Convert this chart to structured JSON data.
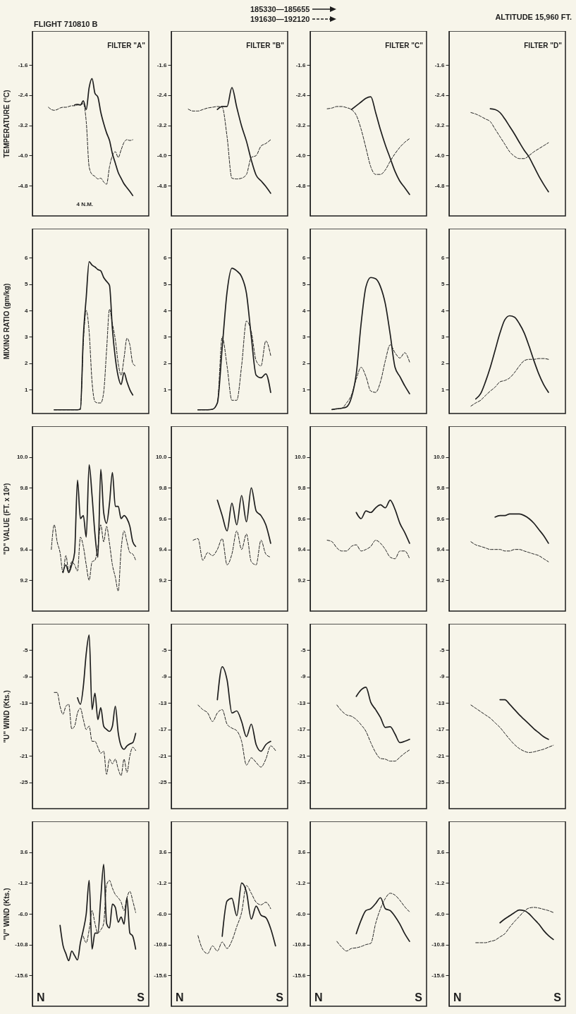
{
  "chart_data": [
    {
      "type": "line",
      "title": "FILTER \"A\"",
      "ylabel": "TEMPERATURE (°C)",
      "categories": [
        null,
        null,
        null,
        null,
        null,
        null,
        null,
        null,
        null,
        null,
        null,
        null,
        null,
        null,
        null,
        null,
        null,
        null,
        null,
        null,
        null,
        null,
        null,
        null,
        null,
        null,
        null,
        null,
        null,
        null,
        null,
        null,
        null,
        null,
        null,
        null,
        null,
        null,
        null,
        null
      ],
      "ylim": [
        -5.6,
        -0.7
      ],
      "yticks": [
        -4.8,
        {
          "value": -4,
          "label": "-4.0"
        },
        -3.2,
        -2.4,
        -1.6
      ],
      "tick_labels": "y",
      "annotations": [
        "FLIGHT 710810 B",
        "185330—185655",
        "191630—192120",
        "ALTITUDE 15,960 FT.",
        "4 N.M."
      ],
      "series": [
        {
          "color": "#1e1e1e",
          "line_style": "solid",
          "values": [
            null,
            null,
            null,
            null,
            null,
            null,
            null,
            null,
            null,
            null,
            null,
            null,
            null,
            null,
            -2.66,
            -2.64,
            -2.66,
            -2.55,
            -2.78,
            -2.2,
            -1.96,
            -2.35,
            -2.45,
            -2.85,
            -3.15,
            -3.4,
            -3.6,
            -3.95,
            -4.2,
            -4.45,
            -4.6,
            -4.75,
            -4.85,
            -4.95,
            -5.06,
            null,
            null,
            null,
            null,
            null
          ]
        },
        {
          "color": "#1e1e1e",
          "line_style": "dashed",
          "values": [
            null,
            null,
            null,
            null,
            null,
            -2.72,
            -2.78,
            -2.8,
            -2.78,
            -2.74,
            -2.72,
            -2.72,
            -2.7,
            -2.68,
            -2.68,
            -2.66,
            -2.66,
            -2.62,
            -3.1,
            -4.3,
            -4.5,
            -4.55,
            -4.62,
            -4.6,
            -4.7,
            -4.76,
            -4.3,
            -4.0,
            -3.9,
            -4.05,
            -3.85,
            -3.65,
            -3.58,
            -3.6,
            -3.58,
            null,
            null,
            null,
            null,
            null
          ]
        }
      ]
    },
    {
      "type": "line",
      "title": "FILTER \"B\"",
      "categories": [
        null,
        null,
        null,
        null,
        null,
        null,
        null,
        null,
        null,
        null,
        null,
        null,
        null,
        null,
        null,
        null,
        null,
        null,
        null,
        null,
        null,
        null,
        null,
        null
      ],
      "ylim": [
        -5.6,
        -0.7
      ],
      "yticks": [
        -4.8,
        {
          "value": -4,
          "label": "-4.0"
        },
        -3.2,
        -2.4,
        -1.6
      ],
      "tick_labels": "y",
      "series": [
        {
          "color": "#1e1e1e",
          "line_style": "solid",
          "values": [
            null,
            null,
            null,
            null,
            null,
            null,
            null,
            null,
            null,
            -2.78,
            -2.7,
            -2.7,
            -2.2,
            -2.72,
            -3.22,
            -3.62,
            -4.12,
            -4.52,
            -4.67,
            -4.82,
            -5.0,
            null,
            null,
            null
          ]
        },
        {
          "color": "#1e1e1e",
          "line_style": "dashed",
          "values": [
            null,
            null,
            null,
            -2.77,
            -2.82,
            -2.82,
            -2.78,
            -2.74,
            -2.72,
            -2.7,
            -2.72,
            -3.5,
            -4.6,
            -4.62,
            -4.6,
            -4.5,
            -4.05,
            -4.0,
            -3.75,
            -3.68,
            -3.58,
            null,
            null,
            null
          ]
        }
      ]
    },
    {
      "type": "line",
      "title": "FILTER \"C\"",
      "categories": [
        null,
        null,
        null,
        null,
        null,
        null,
        null,
        null,
        null,
        null,
        null,
        null,
        null,
        null,
        null,
        null,
        null,
        null,
        null,
        null,
        null,
        null,
        null,
        null
      ],
      "ylim": [
        -5.6,
        -0.7
      ],
      "yticks": [
        -4.8,
        {
          "value": -4,
          "label": "-4.0"
        },
        -3.2,
        -2.4,
        -1.6
      ],
      "tick_labels": "y",
      "series": [
        {
          "color": "#1e1e1e",
          "line_style": "solid",
          "values": [
            null,
            null,
            null,
            null,
            null,
            null,
            null,
            null,
            -2.78,
            -2.68,
            -2.58,
            -2.48,
            -2.44,
            -2.86,
            -3.32,
            -3.72,
            -4.07,
            -4.42,
            -4.68,
            -4.85,
            -5.03,
            null,
            null,
            null
          ]
        },
        {
          "color": "#1e1e1e",
          "line_style": "dashed",
          "values": [
            null,
            null,
            null,
            -2.76,
            -2.74,
            -2.7,
            -2.7,
            -2.73,
            -2.78,
            -2.93,
            -3.3,
            -3.8,
            -4.3,
            -4.5,
            -4.5,
            -4.38,
            -4.15,
            -3.95,
            -3.78,
            -3.65,
            -3.55,
            null,
            null,
            null
          ]
        }
      ]
    },
    {
      "type": "line",
      "title": "FILTER \"D\"",
      "categories": [
        null,
        null,
        null,
        null,
        null,
        null,
        null,
        null,
        null,
        null,
        null,
        null,
        null,
        null,
        null,
        null,
        null,
        null,
        null,
        null,
        null,
        null,
        null,
        null
      ],
      "ylim": [
        -5.6,
        -0.7
      ],
      "yticks": [
        -4.8,
        {
          "value": -4,
          "label": "-4.0"
        },
        -3.2,
        -2.4,
        -1.6
      ],
      "tick_labels": "y",
      "series": [
        {
          "color": "#1e1e1e",
          "line_style": "solid",
          "values": [
            null,
            null,
            null,
            null,
            null,
            null,
            null,
            null,
            -2.76,
            -2.78,
            -2.86,
            -3.03,
            -3.23,
            -3.43,
            -3.65,
            -3.86,
            -4.04,
            -4.29,
            -4.54,
            -4.76,
            -4.96,
            null,
            null,
            null
          ]
        },
        {
          "color": "#1e1e1e",
          "line_style": "dashed",
          "values": [
            null,
            null,
            null,
            null,
            -2.86,
            -2.9,
            -2.96,
            -3.03,
            -3.1,
            -3.3,
            -3.5,
            -3.7,
            -3.9,
            -4.02,
            -4.08,
            -4.08,
            -4.0,
            -3.9,
            -3.82,
            -3.74,
            -3.66,
            null,
            null,
            null
          ]
        }
      ]
    },
    {
      "type": "line",
      "ylabel": "MIXING RATIO (gm/kg)",
      "categories": [
        null,
        null,
        null,
        null,
        null,
        null,
        null,
        null,
        null,
        null,
        null,
        null,
        null,
        null,
        null,
        null,
        null,
        null,
        null,
        null,
        null,
        null,
        null,
        null,
        null,
        null,
        null,
        null,
        null,
        null,
        null,
        null,
        null,
        null,
        null,
        null,
        null,
        null,
        null,
        null
      ],
      "ylim": [
        0.1,
        7.1
      ],
      "yticks": [
        1,
        2,
        3,
        4,
        5,
        6
      ],
      "tick_labels": "y",
      "series": [
        {
          "color": "#1e1e1e",
          "line_style": "solid",
          "values": [
            null,
            null,
            null,
            null,
            null,
            null,
            null,
            0.24,
            0.24,
            0.24,
            0.24,
            0.24,
            0.24,
            0.24,
            0.24,
            0.24,
            0.26,
            3.0,
            4.5,
            5.85,
            5.72,
            5.65,
            5.55,
            5.5,
            5.25,
            5.1,
            4.95,
            3.3,
            2.2,
            1.5,
            1.2,
            1.65,
            1.3,
            1.0,
            0.8,
            null,
            null,
            null,
            null,
            null
          ]
        },
        {
          "color": "#1e1e1e",
          "line_style": "dashed",
          "values": [
            null,
            null,
            null,
            null,
            null,
            null,
            null,
            0.24,
            0.24,
            0.24,
            0.24,
            0.24,
            0.24,
            0.24,
            0.24,
            0.24,
            0.3,
            2.8,
            4.0,
            3.2,
            1.3,
            0.55,
            0.5,
            0.5,
            0.9,
            2.5,
            4.05,
            3.5,
            2.9,
            2.0,
            1.55,
            2.2,
            2.95,
            2.7,
            2.0,
            1.9,
            null,
            null,
            null,
            null
          ]
        }
      ]
    },
    {
      "type": "line",
      "categories": [
        null,
        null,
        null,
        null,
        null,
        null,
        null,
        null,
        null,
        null,
        null,
        null,
        null,
        null,
        null,
        null,
        null,
        null,
        null,
        null,
        null,
        null,
        null,
        null
      ],
      "ylim": [
        0.1,
        7.1
      ],
      "yticks": [
        1,
        2,
        3,
        4,
        5,
        6
      ],
      "tick_labels": "y",
      "series": [
        {
          "color": "#1e1e1e",
          "line_style": "solid",
          "values": [
            null,
            null,
            null,
            null,
            null,
            0.24,
            0.24,
            0.24,
            0.26,
            0.5,
            2.6,
            4.7,
            5.6,
            5.5,
            5.28,
            4.65,
            3.0,
            1.55,
            1.45,
            1.6,
            0.9,
            null,
            null,
            null
          ]
        },
        {
          "color": "#1e1e1e",
          "line_style": "dashed",
          "values": [
            null,
            null,
            null,
            null,
            null,
            0.24,
            0.24,
            0.24,
            0.26,
            0.5,
            3.0,
            1.9,
            0.6,
            0.6,
            1.9,
            3.6,
            3.2,
            2.1,
            1.9,
            2.85,
            2.3,
            null,
            null,
            null
          ]
        }
      ]
    },
    {
      "type": "line",
      "categories": [
        null,
        null,
        null,
        null,
        null,
        null,
        null,
        null,
        null,
        null,
        null,
        null,
        null,
        null,
        null,
        null,
        null,
        null,
        null,
        null,
        null,
        null,
        null,
        null
      ],
      "ylim": [
        0.1,
        7.1
      ],
      "yticks": [
        1,
        2,
        3,
        4,
        5,
        6
      ],
      "tick_labels": "y",
      "series": [
        {
          "color": "#1e1e1e",
          "line_style": "solid",
          "values": [
            null,
            null,
            null,
            null,
            0.25,
            0.28,
            0.3,
            0.35,
            0.7,
            1.6,
            3.5,
            4.9,
            5.25,
            5.2,
            4.9,
            4.25,
            3.1,
            1.85,
            1.5,
            1.15,
            0.85,
            null,
            null,
            null
          ]
        },
        {
          "color": "#1e1e1e",
          "line_style": "dashed",
          "values": [
            null,
            null,
            null,
            null,
            0.25,
            0.27,
            0.3,
            0.5,
            0.8,
            1.4,
            1.85,
            1.5,
            0.95,
            0.9,
            1.3,
            2.1,
            2.7,
            2.4,
            2.2,
            2.4,
            2.05,
            null,
            null,
            null
          ]
        }
      ]
    },
    {
      "type": "line",
      "categories": [
        null,
        null,
        null,
        null,
        null,
        null,
        null,
        null,
        null,
        null,
        null,
        null,
        null,
        null,
        null,
        null,
        null,
        null,
        null,
        null,
        null,
        null,
        null,
        null
      ],
      "ylim": [
        0.1,
        7.1
      ],
      "yticks": [
        1,
        2,
        3,
        4,
        5,
        6
      ],
      "tick_labels": "y",
      "series": [
        {
          "color": "#1e1e1e",
          "line_style": "solid",
          "values": [
            null,
            null,
            null,
            null,
            null,
            0.65,
            0.85,
            1.3,
            1.85,
            2.5,
            3.15,
            3.65,
            3.8,
            3.75,
            3.5,
            3.15,
            2.65,
            2.1,
            1.6,
            1.2,
            0.9,
            null,
            null,
            null
          ]
        },
        {
          "color": "#1e1e1e",
          "line_style": "dashed",
          "values": [
            null,
            null,
            null,
            null,
            0.38,
            0.5,
            0.6,
            0.78,
            0.95,
            1.1,
            1.3,
            1.35,
            1.45,
            1.65,
            1.9,
            2.1,
            2.15,
            2.15,
            2.18,
            2.18,
            2.15,
            null,
            null,
            null
          ]
        }
      ]
    },
    {
      "type": "line",
      "ylabel": "\"D\" VALUE (FT. x 10²)",
      "categories": [
        null,
        null,
        null,
        null,
        null,
        null,
        null,
        null,
        null,
        null,
        null,
        null,
        null,
        null,
        null,
        null,
        null,
        null,
        null,
        null,
        null,
        null,
        null,
        null,
        null,
        null,
        null,
        null,
        null,
        null,
        null,
        null,
        null,
        null,
        null,
        null,
        null,
        null,
        null,
        null
      ],
      "ylim": [
        9.0,
        10.2
      ],
      "yticks": [
        9.2,
        9.4,
        9.6,
        9.8,
        {
          "value": 10,
          "label": "10.0"
        }
      ],
      "tick_labels": "y",
      "series": [
        {
          "color": "#1e1e1e",
          "line_style": "solid",
          "values": [
            null,
            null,
            null,
            null,
            null,
            null,
            null,
            null,
            null,
            null,
            9.25,
            9.3,
            9.25,
            9.3,
            9.38,
            9.85,
            9.6,
            9.62,
            9.48,
            9.95,
            9.75,
            9.5,
            9.35,
            9.92,
            9.64,
            9.57,
            9.7,
            9.9,
            9.68,
            9.68,
            9.6,
            9.62,
            9.6,
            9.55,
            9.45,
            9.42,
            null,
            null,
            null,
            null
          ]
        },
        {
          "color": "#1e1e1e",
          "line_style": "dashed",
          "values": [
            null,
            null,
            null,
            null,
            null,
            null,
            9.4,
            9.56,
            9.45,
            9.38,
            9.25,
            9.36,
            9.26,
            9.32,
            9.3,
            9.26,
            9.48,
            9.42,
            9.3,
            9.2,
            9.32,
            9.33,
            9.42,
            9.56,
            9.45,
            9.55,
            9.44,
            9.3,
            9.22,
            9.13,
            9.4,
            9.52,
            9.45,
            9.38,
            9.37,
            9.33,
            null,
            null,
            null,
            null
          ]
        }
      ]
    },
    {
      "type": "line",
      "categories": [
        null,
        null,
        null,
        null,
        null,
        null,
        null,
        null,
        null,
        null,
        null,
        null,
        null,
        null,
        null,
        null,
        null,
        null,
        null,
        null,
        null,
        null,
        null,
        null
      ],
      "ylim": [
        9.0,
        10.2
      ],
      "yticks": [
        9.2,
        9.4,
        9.6,
        9.8,
        {
          "value": 10,
          "label": "10.0"
        }
      ],
      "tick_labels": "y",
      "series": [
        {
          "color": "#1e1e1e",
          "line_style": "solid",
          "values": [
            null,
            null,
            null,
            null,
            null,
            null,
            null,
            null,
            null,
            9.72,
            9.62,
            9.52,
            9.7,
            9.56,
            9.75,
            9.58,
            9.8,
            9.65,
            9.62,
            9.56,
            9.44,
            null,
            null,
            null
          ]
        },
        {
          "color": "#1e1e1e",
          "line_style": "dashed",
          "values": [
            null,
            null,
            null,
            null,
            9.46,
            9.47,
            9.33,
            9.38,
            9.36,
            9.4,
            9.47,
            9.3,
            9.37,
            9.52,
            9.4,
            9.5,
            9.32,
            9.3,
            9.46,
            9.37,
            9.35,
            null,
            null,
            null
          ]
        }
      ]
    },
    {
      "type": "line",
      "categories": [
        null,
        null,
        null,
        null,
        null,
        null,
        null,
        null,
        null,
        null,
        null,
        null,
        null,
        null,
        null,
        null,
        null,
        null,
        null,
        null,
        null,
        null,
        null,
        null
      ],
      "ylim": [
        9.0,
        10.2
      ],
      "yticks": [
        9.2,
        9.4,
        9.6,
        9.8,
        {
          "value": 10,
          "label": "10.0"
        }
      ],
      "tick_labels": "y",
      "series": [
        {
          "color": "#1e1e1e",
          "line_style": "solid",
          "values": [
            null,
            null,
            null,
            null,
            null,
            null,
            null,
            null,
            null,
            9.64,
            9.6,
            9.65,
            9.64,
            9.67,
            9.69,
            9.67,
            9.72,
            9.66,
            9.57,
            9.51,
            9.44,
            null,
            null,
            null
          ]
        },
        {
          "color": "#1e1e1e",
          "line_style": "dashed",
          "values": [
            null,
            null,
            null,
            9.46,
            9.45,
            9.41,
            9.39,
            9.39,
            9.42,
            9.43,
            9.39,
            9.4,
            9.42,
            9.46,
            9.44,
            9.4,
            9.35,
            9.34,
            9.39,
            9.39,
            9.34,
            null,
            null,
            null
          ]
        }
      ]
    },
    {
      "type": "line",
      "categories": [
        null,
        null,
        null,
        null,
        null,
        null,
        null,
        null,
        null,
        null,
        null,
        null,
        null,
        null,
        null,
        null,
        null,
        null,
        null,
        null,
        null,
        null,
        null,
        null
      ],
      "ylim": [
        9.0,
        10.2
      ],
      "yticks": [
        9.2,
        9.4,
        9.6,
        9.8,
        {
          "value": 10,
          "label": "10.0"
        }
      ],
      "tick_labels": "y",
      "series": [
        {
          "color": "#1e1e1e",
          "line_style": "solid",
          "values": [
            null,
            null,
            null,
            null,
            null,
            null,
            null,
            null,
            null,
            9.61,
            9.62,
            9.62,
            9.63,
            9.63,
            9.63,
            9.62,
            9.6,
            9.57,
            9.53,
            9.49,
            9.44,
            null,
            null,
            null
          ]
        },
        {
          "color": "#1e1e1e",
          "line_style": "dashed",
          "values": [
            null,
            null,
            null,
            null,
            9.45,
            9.43,
            9.42,
            9.41,
            9.4,
            9.4,
            9.4,
            9.39,
            9.39,
            9.4,
            9.4,
            9.39,
            9.38,
            9.37,
            9.36,
            9.34,
            9.32,
            null,
            null,
            null
          ]
        }
      ]
    },
    {
      "type": "line",
      "ylabel": "\"U\" WIND (Kts.)",
      "categories": [
        null,
        null,
        null,
        null,
        null,
        null,
        null,
        null,
        null,
        null,
        null,
        null,
        null,
        null,
        null,
        null,
        null,
        null,
        null,
        null,
        null,
        null,
        null,
        null,
        null,
        null,
        null,
        null,
        null,
        null,
        null,
        null,
        null,
        null,
        null,
        null,
        null,
        null,
        null,
        null
      ],
      "ylim": [
        -29,
        -1
      ],
      "yticks": [
        -25,
        -21,
        -17,
        -13,
        -9,
        -5
      ],
      "tick_labels": "y",
      "series": [
        {
          "color": "#1e1e1e",
          "line_style": "solid",
          "values": [
            null,
            null,
            null,
            null,
            null,
            null,
            null,
            null,
            null,
            null,
            null,
            null,
            null,
            null,
            null,
            -12.2,
            -13.2,
            -10.5,
            -5.5,
            -2.7,
            -14,
            -11.5,
            -15.5,
            -13.7,
            -16.5,
            -17,
            -17.3,
            -16.5,
            -13.5,
            -17.5,
            -19.5,
            -20,
            -19.5,
            -19.2,
            -19,
            -17.6,
            null,
            null,
            null,
            null
          ]
        },
        {
          "color": "#1e1e1e",
          "line_style": "dashed",
          "values": [
            null,
            null,
            null,
            null,
            null,
            null,
            null,
            -11.4,
            -11.4,
            -13.5,
            -14.7,
            -13.5,
            -13.2,
            -16.9,
            -16.5,
            -14.5,
            -13.8,
            -15.5,
            -17,
            -16.5,
            -18.8,
            -18.8,
            -19.7,
            -20.6,
            -20.3,
            -23.8,
            -21.5,
            -22.2,
            -21.5,
            -23,
            -24,
            -21.5,
            -23.5,
            -21,
            -19.7,
            -20.2,
            null,
            null,
            null,
            null
          ]
        }
      ]
    },
    {
      "type": "line",
      "categories": [
        null,
        null,
        null,
        null,
        null,
        null,
        null,
        null,
        null,
        null,
        null,
        null,
        null,
        null,
        null,
        null,
        null,
        null,
        null,
        null,
        null,
        null,
        null,
        null
      ],
      "ylim": [
        -29,
        -1
      ],
      "yticks": [
        -25,
        -21,
        -17,
        -13,
        -9,
        -5
      ],
      "tick_labels": "y",
      "series": [
        {
          "color": "#1e1e1e",
          "line_style": "solid",
          "values": [
            null,
            null,
            null,
            null,
            null,
            null,
            null,
            null,
            null,
            -12.5,
            -7.5,
            -9.5,
            -14.5,
            -14.2,
            -15.8,
            -18.1,
            -16.2,
            -19.3,
            -20.3,
            -19.3,
            -18.8,
            null,
            null,
            null
          ]
        },
        {
          "color": "#1e1e1e",
          "line_style": "dashed",
          "values": [
            null,
            null,
            null,
            null,
            null,
            -13.3,
            -14,
            -14.5,
            -15.8,
            -14.5,
            -14,
            -16.2,
            -16.8,
            -17.2,
            -18.8,
            -22.4,
            -21.3,
            -22,
            -22.7,
            -21.5,
            -19.5,
            -20.2,
            null,
            null
          ]
        }
      ]
    },
    {
      "type": "line",
      "categories": [
        null,
        null,
        null,
        null,
        null,
        null,
        null,
        null,
        null,
        null,
        null,
        null,
        null,
        null,
        null,
        null,
        null,
        null,
        null,
        null,
        null,
        null,
        null,
        null
      ],
      "ylim": [
        -29,
        -1
      ],
      "yticks": [
        -25,
        -21,
        -17,
        -13,
        -9,
        -5
      ],
      "tick_labels": "y",
      "series": [
        {
          "color": "#1e1e1e",
          "line_style": "solid",
          "values": [
            null,
            null,
            null,
            null,
            null,
            null,
            null,
            null,
            null,
            -12.0,
            -11.0,
            -10.6,
            -12.9,
            -14.0,
            -15.2,
            -16.7,
            -16.6,
            -17.7,
            -19.0,
            -18.8,
            -18.5,
            null,
            null,
            null
          ]
        },
        {
          "color": "#1e1e1e",
          "line_style": "dashed",
          "values": [
            null,
            null,
            null,
            null,
            null,
            -13.3,
            -14.2,
            -14.8,
            -15.0,
            -15.5,
            -16.3,
            -17.3,
            -19.0,
            -20.5,
            -21.4,
            -21.5,
            -21.8,
            -21.8,
            -21.2,
            -20.6,
            -20.1,
            null,
            null,
            null
          ]
        }
      ]
    },
    {
      "type": "line",
      "categories": [
        null,
        null,
        null,
        null,
        null,
        null,
        null,
        null,
        null,
        null,
        null,
        null,
        null,
        null,
        null,
        null,
        null,
        null,
        null,
        null,
        null,
        null,
        null,
        null
      ],
      "ylim": [
        -29,
        -1
      ],
      "yticks": [
        -25,
        -21,
        -17,
        -13,
        -9,
        -5
      ],
      "tick_labels": "y",
      "series": [
        {
          "color": "#1e1e1e",
          "line_style": "solid",
          "values": [
            null,
            null,
            null,
            null,
            null,
            null,
            null,
            null,
            null,
            null,
            -12.5,
            -12.5,
            -13.2,
            -14,
            -14.8,
            -15.5,
            -16.2,
            -16.9,
            -17.5,
            -18.1,
            -18.5,
            null,
            null,
            null
          ]
        },
        {
          "color": "#1e1e1e",
          "line_style": "dashed",
          "values": [
            null,
            null,
            null,
            null,
            -13.3,
            -13.8,
            -14.3,
            -14.8,
            -15.3,
            -16,
            -16.7,
            -17.6,
            -18.5,
            -19.3,
            -19.9,
            -20.3,
            -20.5,
            -20.4,
            -20.2,
            -20,
            -19.7,
            -19.4,
            null,
            null
          ]
        }
      ]
    },
    {
      "type": "line",
      "ylabel": "\"V\" WIND (Kts.)",
      "categories": [
        null,
        null,
        null,
        null,
        null,
        null,
        null,
        null,
        null,
        null,
        null,
        null,
        null,
        null,
        null,
        null,
        null,
        null,
        null,
        null,
        null,
        null,
        null,
        null,
        null,
        null,
        null,
        null,
        null,
        null,
        null,
        null,
        null,
        null,
        null,
        null,
        null,
        null,
        null,
        null
      ],
      "ylim": [
        -20.4,
        8.4
      ],
      "yticks": [
        -15.6,
        -10.8,
        {
          "value": -6,
          "label": "-6.0"
        },
        -1.2,
        3.6
      ],
      "tick_labels": "y",
      "annotations": [
        "N",
        "S"
      ],
      "series": [
        {
          "color": "#1e1e1e",
          "line_style": "solid",
          "values": [
            null,
            null,
            null,
            null,
            null,
            null,
            null,
            null,
            null,
            -7.8,
            -10.9,
            -12.2,
            -13.3,
            -11.8,
            -12.5,
            -13.2,
            -10.5,
            -8.5,
            -6,
            -0.8,
            -11.5,
            -9,
            -9,
            -3.5,
            1.7,
            -7.5,
            -8.2,
            -4.5,
            -5,
            -7.3,
            -6.5,
            -7.6,
            -3.5,
            -9,
            -9.5,
            -11.5,
            null,
            null,
            null,
            null
          ]
        },
        {
          "color": "#1e1e1e",
          "line_style": "dashed",
          "values": [
            null,
            null,
            null,
            null,
            null,
            null,
            null,
            null,
            null,
            null,
            null,
            null,
            null,
            null,
            null,
            null,
            null,
            -9.5,
            -10.5,
            -8.5,
            -5.5,
            -7.5,
            -9,
            -8.5,
            -7.5,
            -1.5,
            -0.8,
            -2,
            -3,
            -3.5,
            -4.2,
            -5.5,
            -3.5,
            -2.5,
            -4,
            -5.8,
            null,
            null,
            null,
            null
          ]
        }
      ]
    },
    {
      "type": "line",
      "categories": [
        null,
        null,
        null,
        null,
        null,
        null,
        null,
        null,
        null,
        null,
        null,
        null,
        null,
        null,
        null,
        null,
        null,
        null,
        null,
        null,
        null,
        null,
        null,
        null
      ],
      "ylim": [
        -20.4,
        8.4
      ],
      "yticks": [
        -15.6,
        -10.8,
        {
          "value": -6,
          "label": "-6.0"
        },
        -1.2,
        3.6
      ],
      "tick_labels": "y",
      "annotations": [
        "N",
        "S"
      ],
      "series": [
        {
          "color": "#1e1e1e",
          "line_style": "solid",
          "values": [
            null,
            null,
            null,
            null,
            null,
            null,
            null,
            null,
            null,
            null,
            -9.5,
            -4.0,
            -3.6,
            -6.3,
            -1.2,
            -2.6,
            -6.8,
            -4.8,
            -6.2,
            -6.6,
            -8.3,
            -11.0,
            null,
            null
          ]
        },
        {
          "color": "#1e1e1e",
          "line_style": "dashed",
          "values": [
            null,
            null,
            null,
            null,
            null,
            -9.4,
            -11.6,
            -12.2,
            -11.0,
            -11.8,
            -10.4,
            -11.4,
            -10.2,
            -8.0,
            -5.8,
            -1.6,
            -2.8,
            -4.2,
            -4.6,
            -4.2,
            -5.2,
            null,
            null,
            null
          ]
        }
      ]
    },
    {
      "type": "line",
      "categories": [
        null,
        null,
        null,
        null,
        null,
        null,
        null,
        null,
        null,
        null,
        null,
        null,
        null,
        null,
        null,
        null,
        null,
        null,
        null,
        null,
        null,
        null,
        null,
        null
      ],
      "ylim": [
        -20.4,
        8.4
      ],
      "yticks": [
        -15.6,
        -10.8,
        {
          "value": -6,
          "label": "-6.0"
        },
        -1.2,
        3.6
      ],
      "tick_labels": "y",
      "annotations": [
        "N",
        "S"
      ],
      "series": [
        {
          "color": "#1e1e1e",
          "line_style": "solid",
          "values": [
            null,
            null,
            null,
            null,
            null,
            null,
            null,
            null,
            null,
            -9.1,
            -7.0,
            -5.5,
            -5.2,
            -4.4,
            -3.5,
            -5.2,
            -5.5,
            -6.4,
            -7.6,
            -9.1,
            -10.3,
            null,
            null,
            null
          ]
        },
        {
          "color": "#1e1e1e",
          "line_style": "dashed",
          "values": [
            null,
            null,
            null,
            null,
            null,
            -10.3,
            -11.2,
            -11.8,
            -11.4,
            -11.3,
            -11.1,
            -10.8,
            -10.6,
            -7.5,
            -5.2,
            -3.6,
            -2.8,
            -3.1,
            -3.9,
            -4.9,
            -5.7,
            null,
            null,
            null
          ]
        }
      ]
    },
    {
      "type": "line",
      "categories": [
        null,
        null,
        null,
        null,
        null,
        null,
        null,
        null,
        null,
        null,
        null,
        null,
        null,
        null,
        null,
        null,
        null,
        null,
        null,
        null,
        null,
        null,
        null,
        null
      ],
      "ylim": [
        -20.4,
        8.4
      ],
      "yticks": [
        -15.6,
        -10.8,
        {
          "value": -6,
          "label": "-6.0"
        },
        -1.2,
        3.6
      ],
      "tick_labels": "y",
      "annotations": [
        "N",
        "S"
      ],
      "series": [
        {
          "color": "#1e1e1e",
          "line_style": "solid",
          "values": [
            null,
            null,
            null,
            null,
            null,
            null,
            null,
            null,
            null,
            null,
            -7.4,
            -6.8,
            -6.3,
            -5.8,
            -5.4,
            -5.5,
            -6.0,
            -6.8,
            -7.6,
            -8.6,
            -9.4,
            -10.0,
            null,
            null
          ]
        },
        {
          "color": "#1e1e1e",
          "line_style": "dashed",
          "values": [
            null,
            null,
            null,
            null,
            null,
            -10.5,
            -10.5,
            -10.5,
            -10.3,
            -10.1,
            -9.6,
            -9.1,
            -8.1,
            -7.2,
            -6.4,
            -5.6,
            -5.1,
            -5.0,
            -5.1,
            -5.3,
            -5.5,
            -5.8,
            null,
            null
          ]
        }
      ]
    }
  ]
}
